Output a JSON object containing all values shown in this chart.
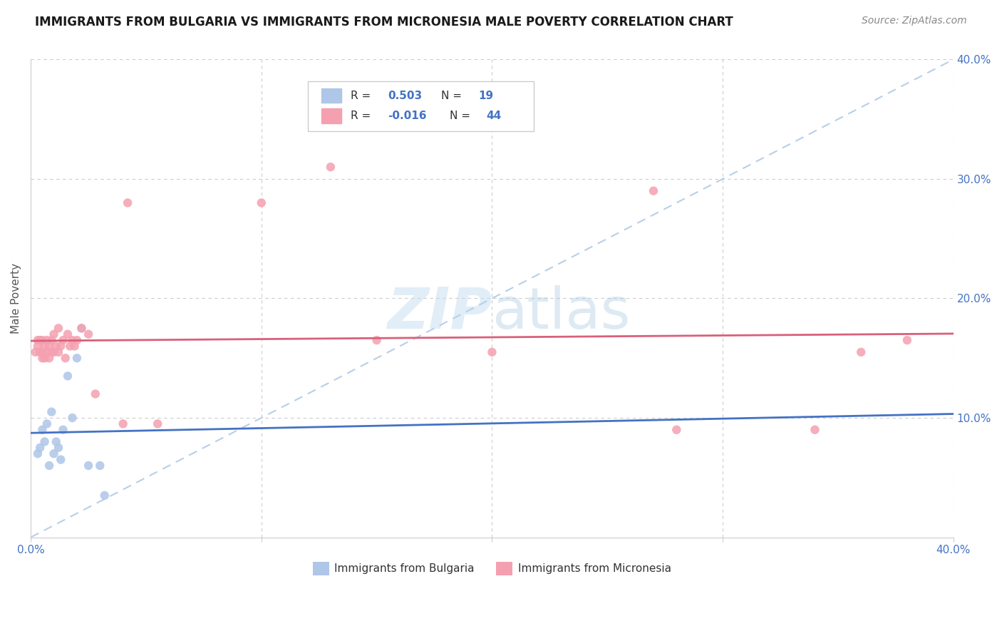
{
  "title": "IMMIGRANTS FROM BULGARIA VS IMMIGRANTS FROM MICRONESIA MALE POVERTY CORRELATION CHART",
  "source": "Source: ZipAtlas.com",
  "ylabel": "Male Poverty",
  "xlim": [
    0.0,
    0.4
  ],
  "ylim": [
    0.0,
    0.4
  ],
  "bg_color": "#ffffff",
  "grid_color": "#cccccc",
  "bulgaria_color": "#aec6e8",
  "micronesia_color": "#f4a0b0",
  "bulgaria_line_color": "#4472c4",
  "micronesia_line_color": "#d9607a",
  "diag_color": "#b8cfe8",
  "tick_color": "#4472c4",
  "label_color": "#555555",
  "text_blue": "#4472c4",
  "R_bulgaria": 0.503,
  "N_bulgaria": 19,
  "R_micronesia": -0.016,
  "N_micronesia": 44,
  "bulgaria_x": [
    0.003,
    0.004,
    0.005,
    0.006,
    0.007,
    0.008,
    0.009,
    0.01,
    0.011,
    0.012,
    0.013,
    0.014,
    0.016,
    0.018,
    0.02,
    0.022,
    0.025,
    0.03,
    0.032
  ],
  "bulgaria_y": [
    0.07,
    0.075,
    0.09,
    0.08,
    0.095,
    0.06,
    0.105,
    0.07,
    0.08,
    0.075,
    0.065,
    0.09,
    0.135,
    0.1,
    0.15,
    0.175,
    0.06,
    0.06,
    0.035
  ],
  "micronesia_x": [
    0.002,
    0.003,
    0.003,
    0.004,
    0.004,
    0.005,
    0.005,
    0.005,
    0.006,
    0.006,
    0.007,
    0.007,
    0.008,
    0.008,
    0.009,
    0.009,
    0.01,
    0.01,
    0.011,
    0.012,
    0.012,
    0.013,
    0.014,
    0.015,
    0.016,
    0.017,
    0.018,
    0.019,
    0.02,
    0.022,
    0.025,
    0.028,
    0.04,
    0.042,
    0.055,
    0.1,
    0.13,
    0.15,
    0.2,
    0.27,
    0.28,
    0.34,
    0.36,
    0.38
  ],
  "micronesia_y": [
    0.155,
    0.16,
    0.165,
    0.155,
    0.165,
    0.15,
    0.155,
    0.165,
    0.15,
    0.16,
    0.155,
    0.165,
    0.15,
    0.16,
    0.155,
    0.165,
    0.155,
    0.17,
    0.16,
    0.155,
    0.175,
    0.16,
    0.165,
    0.15,
    0.17,
    0.16,
    0.165,
    0.16,
    0.165,
    0.175,
    0.17,
    0.12,
    0.095,
    0.28,
    0.095,
    0.28,
    0.31,
    0.165,
    0.155,
    0.29,
    0.09,
    0.09,
    0.155,
    0.165
  ],
  "marker_size": 80
}
